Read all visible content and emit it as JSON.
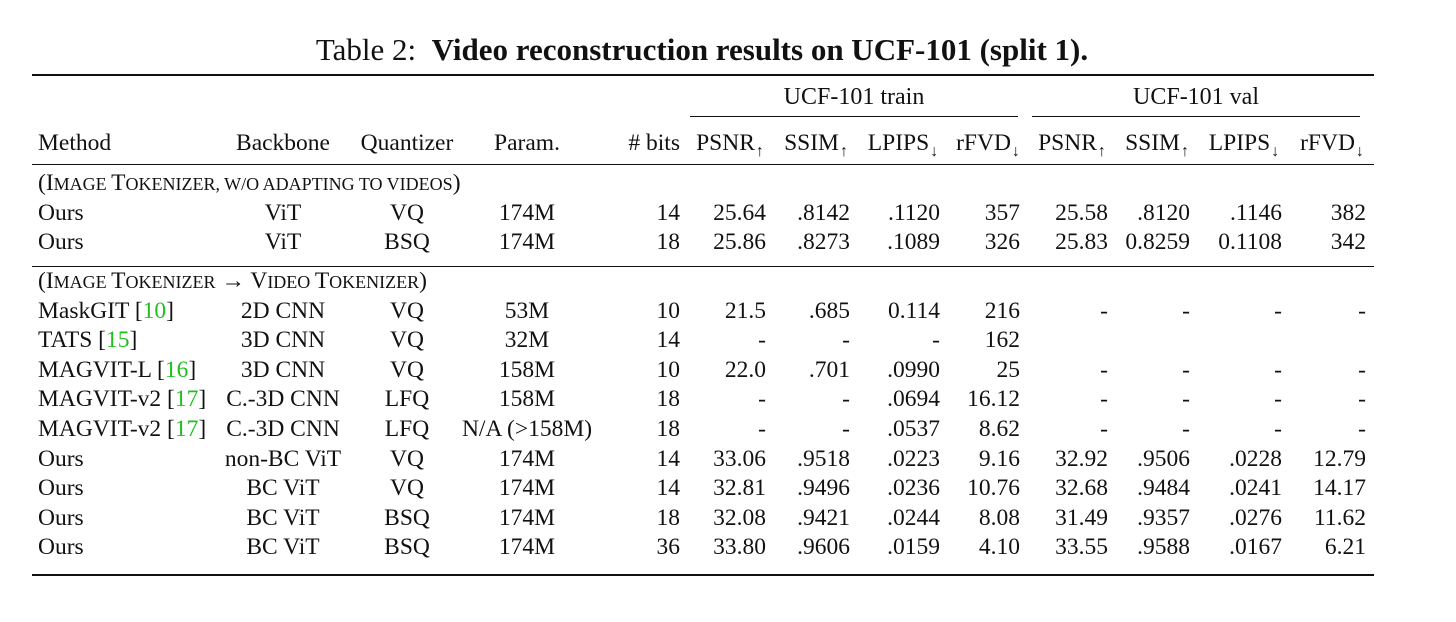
{
  "caption": {
    "prefix": "Table 2:",
    "title": "Video reconstruction results on UCF-101 (split 1)."
  },
  "groups": {
    "train": "UCF-101 train",
    "val": "UCF-101 val"
  },
  "headers": {
    "method": "Method",
    "backbone": "Backbone",
    "quantizer": "Quantizer",
    "param": "Param.",
    "bits": "# bits",
    "psnr": "PSNR",
    "ssim": "SSIM",
    "lpips": "LPIPS",
    "rfvd": "rFVD",
    "up": "↑",
    "down": "↓"
  },
  "sections": {
    "s1": {
      "a1": "I",
      "a2": "mage ",
      "b1": "T",
      "b2": "okenizer, w/o adapting to videos",
      "close": ")"
    },
    "s2": {
      "a1": "I",
      "a2": "mage ",
      "b1": "T",
      "b2": "okenizer",
      "arrow": " → ",
      "c1": "V",
      "c2": "ideo ",
      "d1": "T",
      "d2": "okenizer",
      "close": ")"
    }
  },
  "rows": [
    {
      "method": "Ours",
      "cite": "",
      "backbone": "ViT",
      "quantizer": "VQ",
      "param": "174M",
      "bits": "14",
      "train": [
        "25.64",
        ".8142",
        ".1120",
        "357"
      ],
      "val": [
        "25.58",
        ".8120",
        ".1146",
        "382"
      ]
    },
    {
      "method": "Ours",
      "cite": "",
      "backbone": "ViT",
      "quantizer": "BSQ",
      "param": "174M",
      "bits": "18",
      "train": [
        "25.86",
        ".8273",
        ".1089",
        "326"
      ],
      "val": [
        "25.83",
        "0.8259",
        "0.1108",
        "342"
      ]
    },
    {
      "method": "MaskGIT",
      "cite": "10",
      "backbone": "2D CNN",
      "quantizer": "VQ",
      "param": "53M",
      "bits": "10",
      "train": [
        "21.5",
        ".685",
        "0.114",
        "216"
      ],
      "val": [
        "-",
        "-",
        "-",
        "-"
      ]
    },
    {
      "method": "TATS",
      "cite": "15",
      "backbone": "3D CNN",
      "quantizer": "VQ",
      "param": "32M",
      "bits": "14",
      "train": [
        "-",
        "-",
        "-",
        "162"
      ],
      "val": [
        "",
        "",
        "",
        ""
      ]
    },
    {
      "method": "MAGVIT-L",
      "cite": "16",
      "backbone": "3D CNN",
      "quantizer": "VQ",
      "param": "158M",
      "bits": "10",
      "train": [
        "22.0",
        ".701",
        ".0990",
        "25"
      ],
      "val": [
        "-",
        "-",
        "-",
        "-"
      ]
    },
    {
      "method": "MAGVIT-v2",
      "cite": "17",
      "backbone": "C.-3D CNN",
      "quantizer": "LFQ",
      "param": "158M",
      "bits": "18",
      "train": [
        "-",
        "-",
        ".0694",
        "16.12"
      ],
      "val": [
        "-",
        "-",
        "-",
        "-"
      ]
    },
    {
      "method": "MAGVIT-v2",
      "cite": "17",
      "backbone": "C.-3D CNN",
      "quantizer": "LFQ",
      "param": "N/A (>158M)",
      "bits": "18",
      "train": [
        "-",
        "-",
        ".0537",
        "8.62"
      ],
      "val": [
        "-",
        "-",
        "-",
        "-"
      ]
    },
    {
      "method": "Ours",
      "cite": "",
      "backbone": "non-BC ViT",
      "quantizer": "VQ",
      "param": "174M",
      "bits": "14",
      "train": [
        "33.06",
        ".9518",
        ".0223",
        "9.16"
      ],
      "val": [
        "32.92",
        ".9506",
        ".0228",
        "12.79"
      ]
    },
    {
      "method": "Ours",
      "cite": "",
      "backbone": "BC ViT",
      "quantizer": "VQ",
      "param": "174M",
      "bits": "14",
      "train": [
        "32.81",
        ".9496",
        ".0236",
        "10.76"
      ],
      "val": [
        "32.68",
        ".9484",
        ".0241",
        "14.17"
      ]
    },
    {
      "method": "Ours",
      "cite": "",
      "backbone": "BC ViT",
      "quantizer": "BSQ",
      "param": "174M",
      "bits": "18",
      "train": [
        "32.08",
        ".9421",
        ".0244",
        "8.08"
      ],
      "val": [
        "31.49",
        ".9357",
        ".0276",
        "11.62"
      ]
    },
    {
      "method": "Ours",
      "cite": "",
      "backbone": "BC ViT",
      "quantizer": "BSQ",
      "param": "174M",
      "bits": "36",
      "train": [
        "33.80",
        ".9606",
        ".0159",
        "4.10"
      ],
      "val": [
        "33.55",
        ".9588",
        ".0167",
        "6.21"
      ]
    }
  ]
}
